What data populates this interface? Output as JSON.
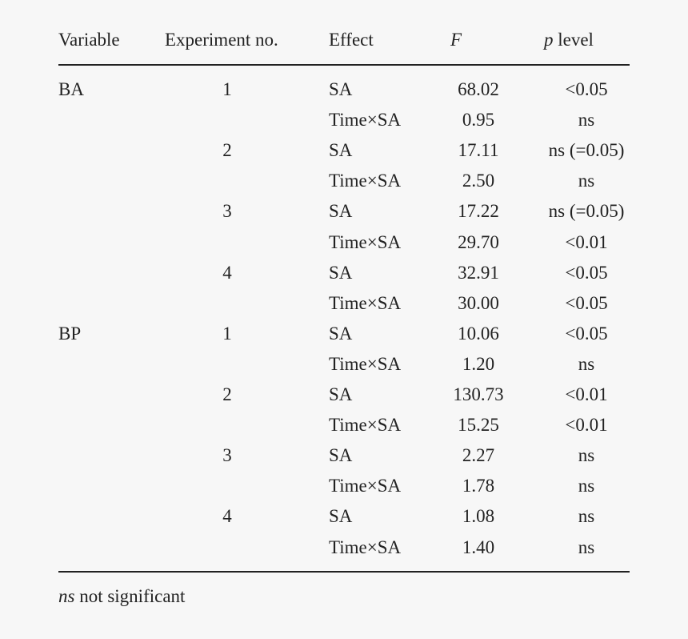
{
  "table": {
    "headers": {
      "variable": "Variable",
      "experiment": "Experiment no.",
      "effect": "Effect",
      "f": "F",
      "p_symbol": "p",
      "p_word": "level"
    },
    "rows": [
      {
        "variable": "BA",
        "experiment": "1",
        "effect": "SA",
        "f": "68.02",
        "p": "<0.05"
      },
      {
        "variable": "",
        "experiment": "",
        "effect": "Time×SA",
        "f": "0.95",
        "p": "ns"
      },
      {
        "variable": "",
        "experiment": "2",
        "effect": "SA",
        "f": "17.11",
        "p": "ns (=0.05)"
      },
      {
        "variable": "",
        "experiment": "",
        "effect": "Time×SA",
        "f": "2.50",
        "p": "ns"
      },
      {
        "variable": "",
        "experiment": "3",
        "effect": "SA",
        "f": "17.22",
        "p": "ns (=0.05)"
      },
      {
        "variable": "",
        "experiment": "",
        "effect": "Time×SA",
        "f": "29.70",
        "p": "<0.01"
      },
      {
        "variable": "",
        "experiment": "4",
        "effect": "SA",
        "f": "32.91",
        "p": "<0.05"
      },
      {
        "variable": "",
        "experiment": "",
        "effect": "Time×SA",
        "f": "30.00",
        "p": "<0.05"
      },
      {
        "variable": "BP",
        "experiment": "1",
        "effect": "SA",
        "f": "10.06",
        "p": "<0.05"
      },
      {
        "variable": "",
        "experiment": "",
        "effect": "Time×SA",
        "f": "1.20",
        "p": "ns"
      },
      {
        "variable": "",
        "experiment": "2",
        "effect": "SA",
        "f": "130.73",
        "p": "<0.01"
      },
      {
        "variable": "",
        "experiment": "",
        "effect": "Time×SA",
        "f": "15.25",
        "p": "<0.01"
      },
      {
        "variable": "",
        "experiment": "3",
        "effect": "SA",
        "f": "2.27",
        "p": "ns"
      },
      {
        "variable": "",
        "experiment": "",
        "effect": "Time×SA",
        "f": "1.78",
        "p": "ns"
      },
      {
        "variable": "",
        "experiment": "4",
        "effect": "SA",
        "f": "1.08",
        "p": "ns"
      },
      {
        "variable": "",
        "experiment": "",
        "effect": "Time×SA",
        "f": "1.40",
        "p": "ns"
      }
    ]
  },
  "footnote": {
    "abbr": "ns",
    "text": "not significant"
  }
}
